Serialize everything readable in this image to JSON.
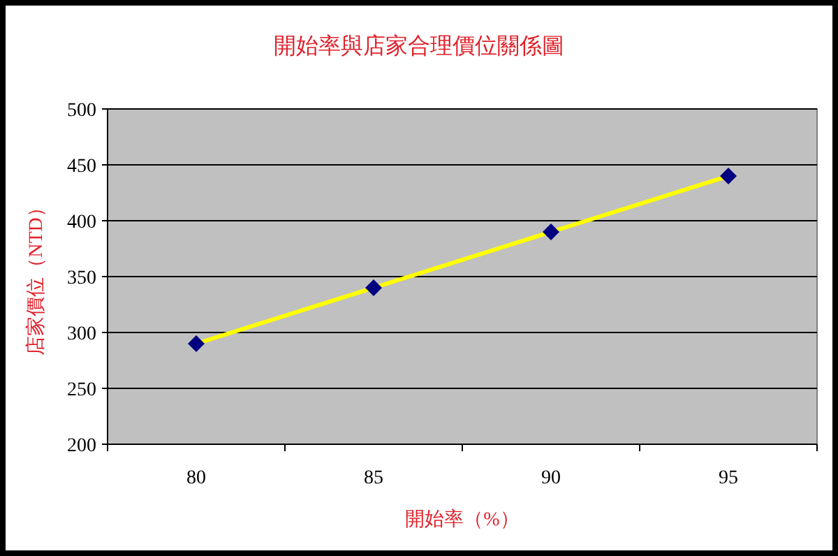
{
  "chart_data": {
    "type": "line",
    "title": "開始率與店家合理價位關係圖",
    "xlabel": "開始率（%）",
    "ylabel": "店家價位（NTD）",
    "categories": [
      "80",
      "85",
      "90",
      "95"
    ],
    "series": [
      {
        "color": "#ffff00",
        "values": [
          290,
          340,
          390,
          440
        ],
        "marker": "none"
      },
      {
        "type": "scatter",
        "color": "#000080",
        "values": [
          290,
          340,
          390,
          440
        ],
        "marker": "diamond"
      }
    ],
    "ylim": [
      200,
      500
    ],
    "yticks": [
      200,
      250,
      300,
      350,
      400,
      450,
      500
    ],
    "grid": "y"
  }
}
